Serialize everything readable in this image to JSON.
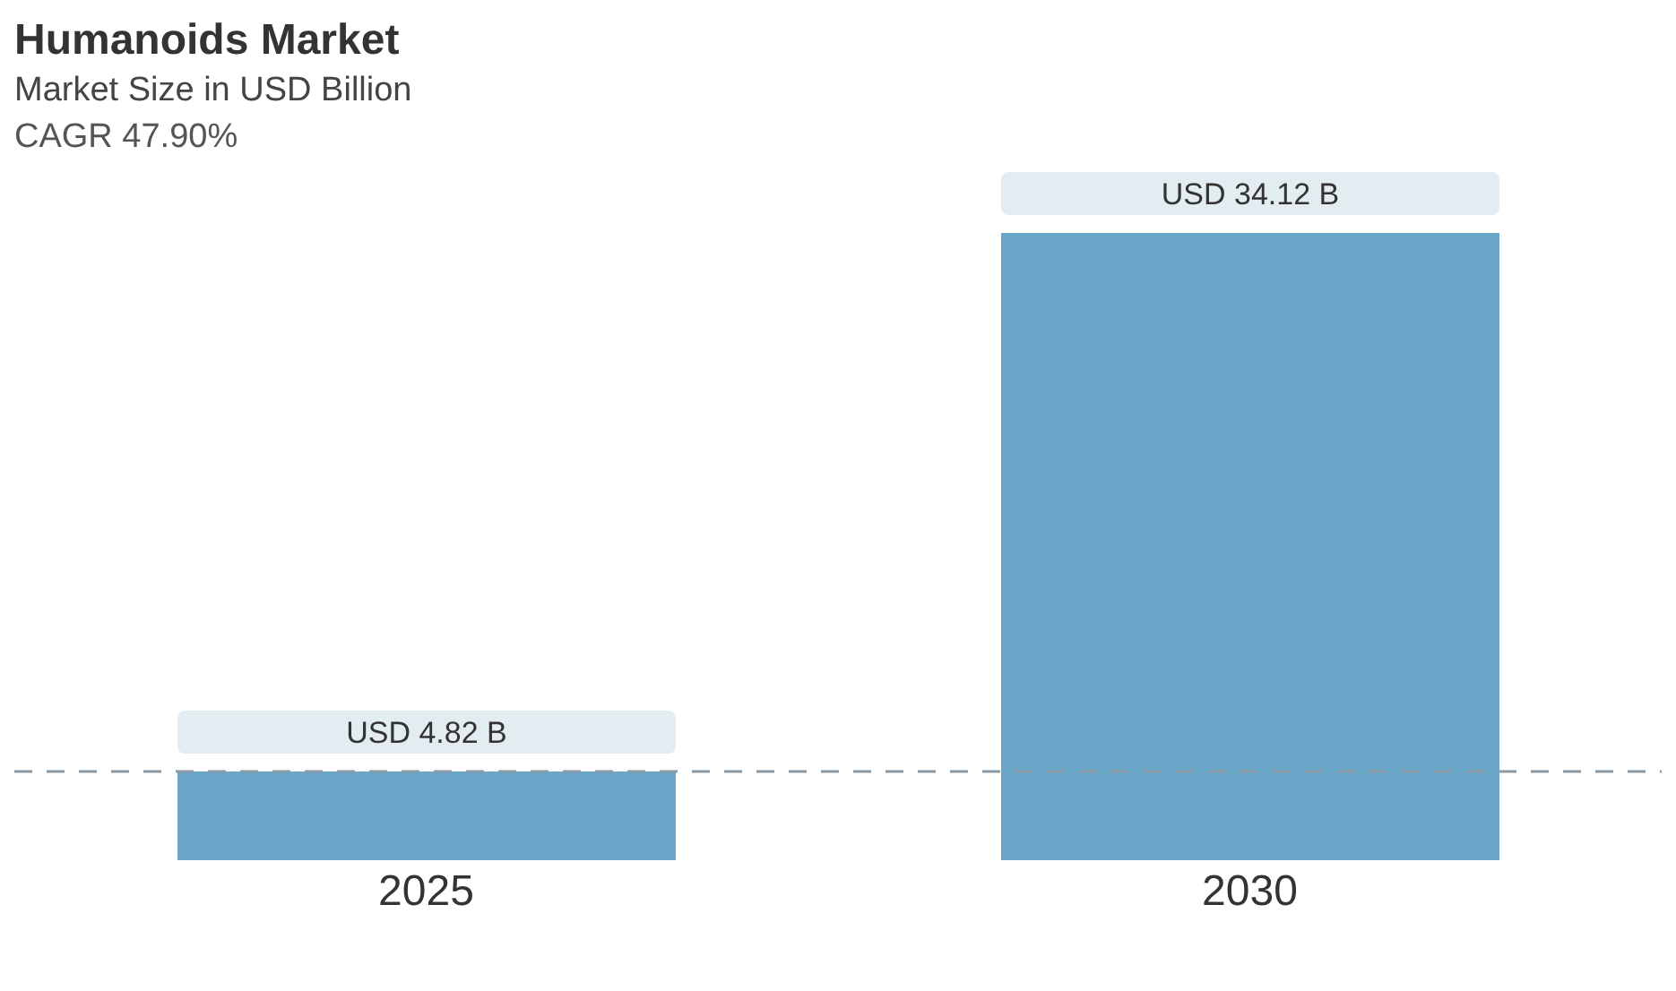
{
  "chart_data": {
    "type": "bar",
    "title": "Humanoids Market",
    "subtitle": "Market Size in USD Billion",
    "annotations": [
      "CAGR 47.90%"
    ],
    "categories": [
      "2025",
      "2030"
    ],
    "values": [
      4.82,
      34.12
    ],
    "value_labels": [
      "USD 4.82 B",
      "USD 34.12 B"
    ],
    "color": "#6aa6c8",
    "ref_lines": [
      {
        "axis": "y",
        "value": 4.82,
        "color": "#8a9aa6",
        "line_style": "dashed"
      }
    ]
  }
}
